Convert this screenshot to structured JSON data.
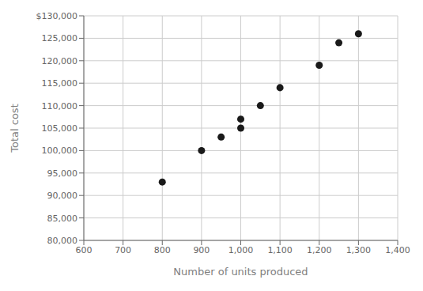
{
  "chart_data": {
    "type": "scatter",
    "xlabel": "Number of units produced",
    "ylabel": "Total cost",
    "x": [
      800,
      900,
      950,
      1000,
      1000,
      1050,
      1100,
      1200,
      1250,
      1300
    ],
    "y": [
      93000,
      100000,
      103000,
      107000,
      105000,
      110000,
      114000,
      119000,
      124000,
      126000
    ],
    "color": "#1a1a1a",
    "xlim": [
      600,
      1400
    ],
    "ylim": [
      80000,
      130000
    ],
    "xticks": [
      600,
      700,
      800,
      900,
      {
        "value": 1000,
        "label": "1,000"
      },
      {
        "value": 1100,
        "label": "1,100"
      },
      {
        "value": 1200,
        "label": "1,200"
      },
      {
        "value": 1300,
        "label": "1,300"
      },
      {
        "value": 1400,
        "label": "1,400"
      }
    ],
    "yticks": [
      {
        "value": 80000,
        "label": "80,000"
      },
      {
        "value": 85000,
        "label": "85,000"
      },
      {
        "value": 90000,
        "label": "90,000"
      },
      {
        "value": 95000,
        "label": "95,000"
      },
      {
        "value": 100000,
        "label": "100,000"
      },
      {
        "value": 105000,
        "label": "105,000"
      },
      {
        "value": 110000,
        "label": "110,000"
      },
      {
        "value": 115000,
        "label": "115,000"
      },
      {
        "value": 120000,
        "label": "120,000"
      },
      {
        "value": 125000,
        "label": "125,000"
      },
      {
        "value": 130000,
        "label": "$130,000"
      }
    ],
    "grid": true
  }
}
